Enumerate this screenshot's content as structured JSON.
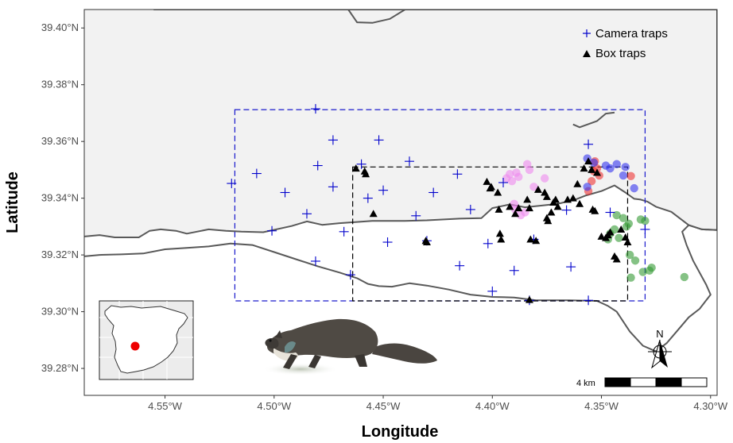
{
  "axes": {
    "xlabel": "Longitude",
    "ylabel": "Latitude",
    "xlim": [
      -4.587,
      -4.297
    ],
    "ylim": [
      39.2705,
      39.4065
    ],
    "xticks": [
      {
        "value": -4.55,
        "label": "4.55°W"
      },
      {
        "value": -4.5,
        "label": "4.50°W"
      },
      {
        "value": -4.45,
        "label": "4.45°W"
      },
      {
        "value": -4.4,
        "label": "4.40°W"
      },
      {
        "value": -4.35,
        "label": "4.35°W"
      },
      {
        "value": -4.3,
        "label": "4.30°W"
      }
    ],
    "yticks": [
      {
        "value": 39.28,
        "label": "39.28°N"
      },
      {
        "value": 39.3,
        "label": "39.30°N"
      },
      {
        "value": 39.32,
        "label": "39.32°N"
      },
      {
        "value": 39.34,
        "label": "39.34°N"
      },
      {
        "value": 39.36,
        "label": "39.36°N"
      },
      {
        "value": 39.38,
        "label": "39.38°N"
      },
      {
        "value": 39.4,
        "label": "39.40°N"
      }
    ]
  },
  "legend": {
    "position": "top-right",
    "items": [
      {
        "label": "Camera traps",
        "symbol": "plus",
        "color": "#0000cc"
      },
      {
        "label": "Box traps",
        "symbol": "triangle",
        "color": "#000000"
      }
    ]
  },
  "colors": {
    "land_fill": "#f2f2f2",
    "boundary": "#595959",
    "camera_trap": "#0000cc",
    "box_trap": "#000000",
    "outer_box": "#1a1acc",
    "inner_box": "#000000",
    "group_pink": "#ee88ee",
    "group_red": "#ee3333",
    "group_blue": "#3333ee",
    "group_green": "#339933",
    "location_marker": "#ee0000"
  },
  "map": {
    "boundary_upper": [
      [
        -4.587,
        39.3265
      ],
      [
        -4.58,
        39.327
      ],
      [
        -4.573,
        39.3262
      ],
      [
        -4.562,
        39.3262
      ],
      [
        -4.557,
        39.3285
      ],
      [
        -4.552,
        39.329
      ],
      [
        -4.545,
        39.3285
      ],
      [
        -4.54,
        39.3275
      ],
      [
        -4.53,
        39.329
      ],
      [
        -4.522,
        39.3285
      ],
      [
        -4.515,
        39.3282
      ],
      [
        -4.505,
        39.328
      ],
      [
        -4.492,
        39.3302
      ],
      [
        -4.485,
        39.3318
      ],
      [
        -4.478,
        39.3306
      ],
      [
        -4.47,
        39.3312
      ],
      [
        -4.455,
        39.332
      ],
      [
        -4.44,
        39.332
      ],
      [
        -4.43,
        39.3322
      ],
      [
        -4.415,
        39.3328
      ],
      [
        -4.405,
        39.333
      ],
      [
        -4.4,
        39.3365
      ],
      [
        -4.392,
        39.3378
      ],
      [
        -4.385,
        39.3368
      ],
      [
        -4.37,
        39.338
      ],
      [
        -4.362,
        39.3395
      ],
      [
        -4.357,
        39.341
      ],
      [
        -4.35,
        39.3425
      ],
      [
        -4.344,
        39.3445
      ],
      [
        -4.339,
        39.342
      ],
      [
        -4.335,
        39.3398
      ],
      [
        -4.332,
        39.3395
      ],
      [
        -4.329,
        39.3388
      ],
      [
        -4.325,
        39.337
      ],
      [
        -4.318,
        39.3352
      ],
      [
        -4.31,
        39.3305
      ],
      [
        -4.304,
        39.329
      ],
      [
        -4.297,
        39.3288
      ]
    ],
    "boundary_outline": [
      [
        -4.587,
        39.3195
      ],
      [
        -4.58,
        39.32
      ],
      [
        -4.57,
        39.3202
      ],
      [
        -4.56,
        39.3205
      ],
      [
        -4.55,
        39.322
      ],
      [
        -4.54,
        39.3225
      ],
      [
        -4.53,
        39.323
      ],
      [
        -4.52,
        39.324
      ],
      [
        -4.51,
        39.3235
      ],
      [
        -4.5,
        39.321
      ],
      [
        -4.49,
        39.3185
      ],
      [
        -4.48,
        39.316
      ],
      [
        -4.47,
        39.3138
      ],
      [
        -4.462,
        39.3118
      ],
      [
        -4.457,
        39.3098
      ],
      [
        -4.452,
        39.309
      ],
      [
        -4.446,
        39.3088
      ],
      [
        -4.438,
        39.31
      ],
      [
        -4.43,
        39.3092
      ],
      [
        -4.42,
        39.3078
      ],
      [
        -4.41,
        39.306
      ],
      [
        -4.4,
        39.3052
      ],
      [
        -4.39,
        39.305
      ],
      [
        -4.38,
        39.304
      ],
      [
        -4.365,
        39.304
      ],
      [
        -4.352,
        39.3038
      ],
      [
        -4.347,
        39.302
      ],
      [
        -4.343,
        39.3
      ],
      [
        -4.337,
        39.293
      ],
      [
        -4.331,
        39.288
      ],
      [
        -4.325,
        39.286
      ],
      [
        -4.32,
        39.289
      ],
      [
        -4.315,
        39.2935
      ],
      [
        -4.31,
        39.298
      ],
      [
        -4.305,
        39.301
      ],
      [
        -4.3,
        39.306
      ],
      [
        -4.302,
        39.3095
      ],
      [
        -4.308,
        39.318
      ],
      [
        -4.311,
        39.3235
      ],
      [
        -4.313,
        39.3282
      ],
      [
        -4.31,
        39.3305
      ],
      [
        -4.304,
        39.329
      ],
      [
        -4.297,
        39.3288
      ],
      [
        -4.297,
        39.4065
      ],
      [
        -4.555,
        39.4065
      ],
      [
        -4.548,
        39.41
      ],
      [
        -4.54,
        39.41
      ]
    ],
    "north_spur": [
      [
        -4.555,
        39.4065
      ],
      [
        -4.541,
        39.4112
      ]
    ],
    "top_notch": [
      [
        -4.466,
        39.4065
      ],
      [
        -4.462,
        39.402
      ],
      [
        -4.455,
        39.4018
      ],
      [
        -4.447,
        39.4032
      ],
      [
        -4.44,
        39.4065
      ]
    ],
    "east_notch": [
      [
        -4.363,
        39.366
      ],
      [
        -4.36,
        39.365
      ],
      [
        -4.352,
        39.3672
      ],
      [
        -4.348,
        39.3698
      ],
      [
        -4.344,
        39.3702
      ]
    ],
    "left_edge": [
      [
        -4.587,
        39.4065
      ],
      [
        -4.587,
        39.3195
      ]
    ],
    "outer_box": {
      "lon": [
        -4.518,
        -4.33
      ],
      "lat": [
        39.3038,
        39.3712
      ]
    },
    "inner_box": {
      "lon": [
        -4.464,
        -4.338
      ],
      "lat": [
        39.3038,
        39.351
      ]
    }
  },
  "camera_traps": [
    [
      -4.5195,
      39.3452
    ],
    [
      -4.508,
      39.3487
    ],
    [
      -4.501,
      39.3285
    ],
    [
      -4.495,
      39.342
    ],
    [
      -4.485,
      39.3345
    ],
    [
      -4.481,
      39.3715
    ],
    [
      -4.48,
      39.3515
    ],
    [
      -4.481,
      39.3178
    ],
    [
      -4.473,
      39.3605
    ],
    [
      -4.473,
      39.344
    ],
    [
      -4.468,
      39.3282
    ],
    [
      -4.465,
      39.313
    ],
    [
      -4.46,
      39.352
    ],
    [
      -4.457,
      39.34
    ],
    [
      -4.452,
      39.3605
    ],
    [
      -4.45,
      39.3428
    ],
    [
      -4.448,
      39.3245
    ],
    [
      -4.438,
      39.353
    ],
    [
      -4.435,
      39.3338
    ],
    [
      -4.43,
      39.325
    ],
    [
      -4.427,
      39.342
    ],
    [
      -4.416,
      39.3485
    ],
    [
      -4.415,
      39.3162
    ],
    [
      -4.41,
      39.336
    ],
    [
      -4.402,
      39.324
    ],
    [
      -4.4,
      39.3072
    ],
    [
      -4.395,
      39.3455
    ],
    [
      -4.39,
      39.3145
    ],
    [
      -4.383,
      39.304
    ],
    [
      -4.381,
      39.3255
    ],
    [
      -4.366,
      39.3358
    ],
    [
      -4.364,
      39.3158
    ],
    [
      -4.356,
      39.359
    ],
    [
      -4.356,
      39.304
    ],
    [
      -4.346,
      39.335
    ],
    [
      -4.33,
      39.329
    ]
  ],
  "box_traps": [
    [
      -4.4625,
      39.3505
    ],
    [
      -4.4585,
      39.3495
    ],
    [
      -4.458,
      39.3485
    ],
    [
      -4.4545,
      39.3345
    ],
    [
      -4.4305,
      39.325
    ],
    [
      -4.43,
      39.3245
    ],
    [
      -4.4025,
      39.3458
    ],
    [
      -4.401,
      39.3435
    ],
    [
      -4.4005,
      39.344
    ],
    [
      -4.3975,
      39.342
    ],
    [
      -4.397,
      39.336
    ],
    [
      -4.3965,
      39.3275
    ],
    [
      -4.396,
      39.3255
    ],
    [
      -4.392,
      39.337
    ],
    [
      -4.3895,
      39.3345
    ],
    [
      -4.388,
      39.3365
    ],
    [
      -4.384,
      39.3395
    ],
    [
      -4.383,
      39.3365
    ],
    [
      -4.3825,
      39.3255
    ],
    [
      -4.38,
      39.325
    ],
    [
      -4.379,
      39.343
    ],
    [
      -4.376,
      39.342
    ],
    [
      -4.375,
      39.3405
    ],
    [
      -4.375,
      39.333
    ],
    [
      -4.3745,
      39.332
    ],
    [
      -4.373,
      39.335
    ],
    [
      -4.372,
      39.3385
    ],
    [
      -4.371,
      39.3395
    ],
    [
      -4.37,
      39.337
    ],
    [
      -4.383,
      39.3042
    ],
    [
      -4.3655,
      39.3395
    ],
    [
      -4.363,
      39.34
    ],
    [
      -4.36,
      39.338
    ],
    [
      -4.361,
      39.345
    ],
    [
      -4.358,
      39.3505
    ],
    [
      -4.356,
      39.353
    ],
    [
      -4.3545,
      39.35
    ],
    [
      -4.354,
      39.336
    ],
    [
      -4.353,
      39.3355
    ],
    [
      -4.352,
      39.349
    ],
    [
      -4.35,
      39.3265
    ],
    [
      -4.348,
      39.326
    ],
    [
      -4.347,
      39.327
    ],
    [
      -4.346,
      39.328
    ],
    [
      -4.344,
      39.3195
    ],
    [
      -4.343,
      39.3185
    ],
    [
      -4.341,
      39.329
    ],
    [
      -4.339,
      39.3262
    ],
    [
      -4.338,
      39.3245
    ]
  ],
  "capture_groups": [
    {
      "color_key": "group_pink",
      "points": [
        [
          -4.3935,
          39.347
        ],
        [
          -4.392,
          39.3485
        ],
        [
          -4.391,
          39.346
        ],
        [
          -4.39,
          39.338
        ],
        [
          -4.3895,
          39.336
        ],
        [
          -4.389,
          39.349
        ],
        [
          -4.388,
          39.3475
        ],
        [
          -4.387,
          39.334
        ],
        [
          -4.385,
          39.335
        ],
        [
          -4.384,
          39.352
        ],
        [
          -4.383,
          39.35
        ],
        [
          -4.381,
          39.344
        ],
        [
          -4.376,
          39.347
        ]
      ]
    },
    {
      "color_key": "group_red",
      "points": [
        [
          -4.356,
          39.3425
        ],
        [
          -4.3545,
          39.346
        ],
        [
          -4.3535,
          39.3495
        ],
        [
          -4.353,
          39.353
        ],
        [
          -4.352,
          39.3505
        ],
        [
          -4.351,
          39.348
        ],
        [
          -4.3365,
          39.3478
        ]
      ]
    },
    {
      "color_key": "group_blue",
      "points": [
        [
          -4.3565,
          39.354
        ],
        [
          -4.3535,
          39.3525
        ],
        [
          -4.348,
          39.3515
        ],
        [
          -4.346,
          39.3505
        ],
        [
          -4.343,
          39.352
        ],
        [
          -4.34,
          39.348
        ],
        [
          -4.339,
          39.351
        ],
        [
          -4.3565,
          39.344
        ],
        [
          -4.335,
          39.3435
        ]
      ]
    },
    {
      "color_key": "group_green",
      "points": [
        [
          -4.347,
          39.3255
        ],
        [
          -4.346,
          39.3275
        ],
        [
          -4.344,
          39.329
        ],
        [
          -4.343,
          39.334
        ],
        [
          -4.342,
          39.326
        ],
        [
          -4.34,
          39.333
        ],
        [
          -4.3385,
          39.33
        ],
        [
          -4.3375,
          39.331
        ],
        [
          -4.337,
          39.32
        ],
        [
          -4.3365,
          39.312
        ],
        [
          -4.3345,
          39.318
        ],
        [
          -4.332,
          39.3325
        ],
        [
          -4.331,
          39.314
        ],
        [
          -4.33,
          39.332
        ],
        [
          -4.328,
          39.3145
        ],
        [
          -4.327,
          39.3155
        ],
        [
          -4.312,
          39.3122
        ]
      ]
    }
  ],
  "scale_bar": {
    "label": "4 km",
    "segments": 4
  },
  "north_arrow": {
    "label": "N"
  }
}
